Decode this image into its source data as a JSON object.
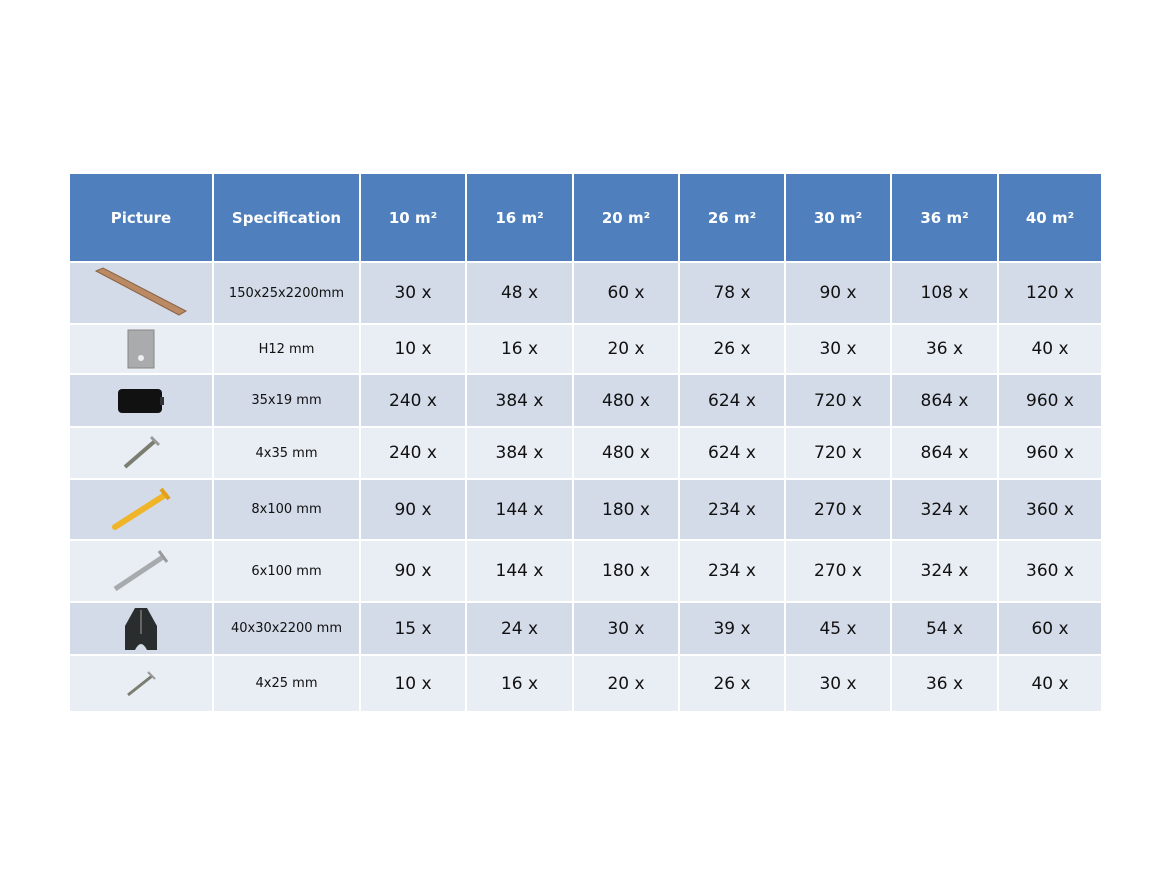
{
  "table": {
    "headers": [
      "Picture",
      "Specification",
      "10 m²",
      "16 m²",
      "20 m²",
      "26 m²",
      "30 m²",
      "36 m²",
      "40 m²"
    ],
    "rows": [
      {
        "icon": "decking-board-icon",
        "spec": "150x25x2200mm",
        "q": [
          "30 x",
          "48 x",
          "60 x",
          "78 x",
          "90 x",
          "108 x",
          "120 x"
        ]
      },
      {
        "icon": "metal-clip-icon",
        "spec": "H12 mm",
        "q": [
          "10 x",
          "16 x",
          "20 x",
          "26 x",
          "30 x",
          "36 x",
          "40 x"
        ]
      },
      {
        "icon": "plastic-clip-icon",
        "spec": "35x19 mm",
        "q": [
          "240 x",
          "384 x",
          "480 x",
          "624 x",
          "720 x",
          "864 x",
          "960 x"
        ]
      },
      {
        "icon": "screw-icon",
        "spec": "4x35 mm",
        "q": [
          "240 x",
          "384 x",
          "480 x",
          "624 x",
          "720 x",
          "864 x",
          "960 x"
        ]
      },
      {
        "icon": "wall-plug-icon",
        "spec": "8x100 mm",
        "q": [
          "90 x",
          "144 x",
          "180 x",
          "234 x",
          "270 x",
          "324 x",
          "360 x"
        ]
      },
      {
        "icon": "long-screw-icon",
        "spec": "6x100 mm",
        "q": [
          "90 x",
          "144 x",
          "180 x",
          "234 x",
          "270 x",
          "324 x",
          "360 x"
        ]
      },
      {
        "icon": "joist-icon",
        "spec": "40x30x2200 mm",
        "q": [
          "15 x",
          "24 x",
          "30 x",
          "39 x",
          "45 x",
          "54 x",
          "60 x"
        ]
      },
      {
        "icon": "small-screw-icon",
        "spec": "4x25 mm",
        "q": [
          "10 x",
          "16 x",
          "20 x",
          "26 x",
          "30 x",
          "36 x",
          "40 x"
        ]
      }
    ]
  },
  "colors": {
    "header": "#4f7fbc",
    "row_dark": "#d3dae8",
    "row_light": "#e9edf4"
  }
}
